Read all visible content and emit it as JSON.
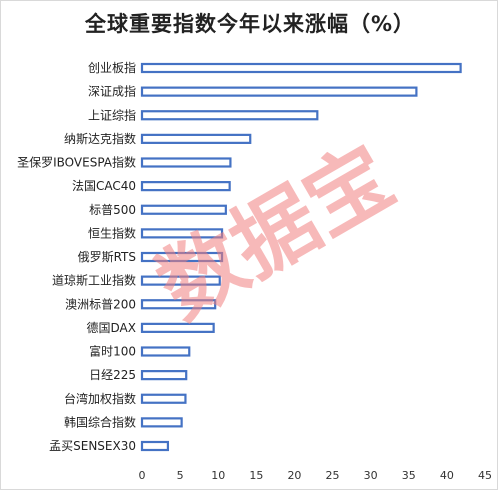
{
  "chart_data": {
    "type": "bar",
    "orientation": "horizontal",
    "title": "全球重要指数今年以来涨幅（%）",
    "categories": [
      "创业板指",
      "深证成指",
      "上证综指",
      "纳斯达克指数",
      "圣保罗IBOVESPA指数",
      "法国CAC40",
      "标普500",
      "恒生指数",
      "俄罗斯RTS",
      "道琼斯工业指数",
      "澳洲标普200",
      "德国DAX",
      "富时100",
      "日经225",
      "台湾加权指数",
      "韩国综合指数",
      "孟买SENSEX30"
    ],
    "values": [
      41.8,
      36.0,
      23.0,
      14.2,
      11.6,
      11.5,
      11.0,
      10.5,
      10.5,
      10.2,
      9.6,
      9.4,
      6.2,
      5.8,
      5.7,
      5.2,
      3.4
    ],
    "xlim": [
      0,
      45
    ],
    "xticks": [
      0,
      5,
      10,
      15,
      20,
      25,
      30,
      35,
      40,
      45
    ],
    "grid": false,
    "legend": "none",
    "colors": {
      "bar_fill": "#ffffff",
      "bar_stroke": "#4472c4"
    }
  },
  "watermark": {
    "text": "数据宝",
    "color": "#f08080"
  }
}
